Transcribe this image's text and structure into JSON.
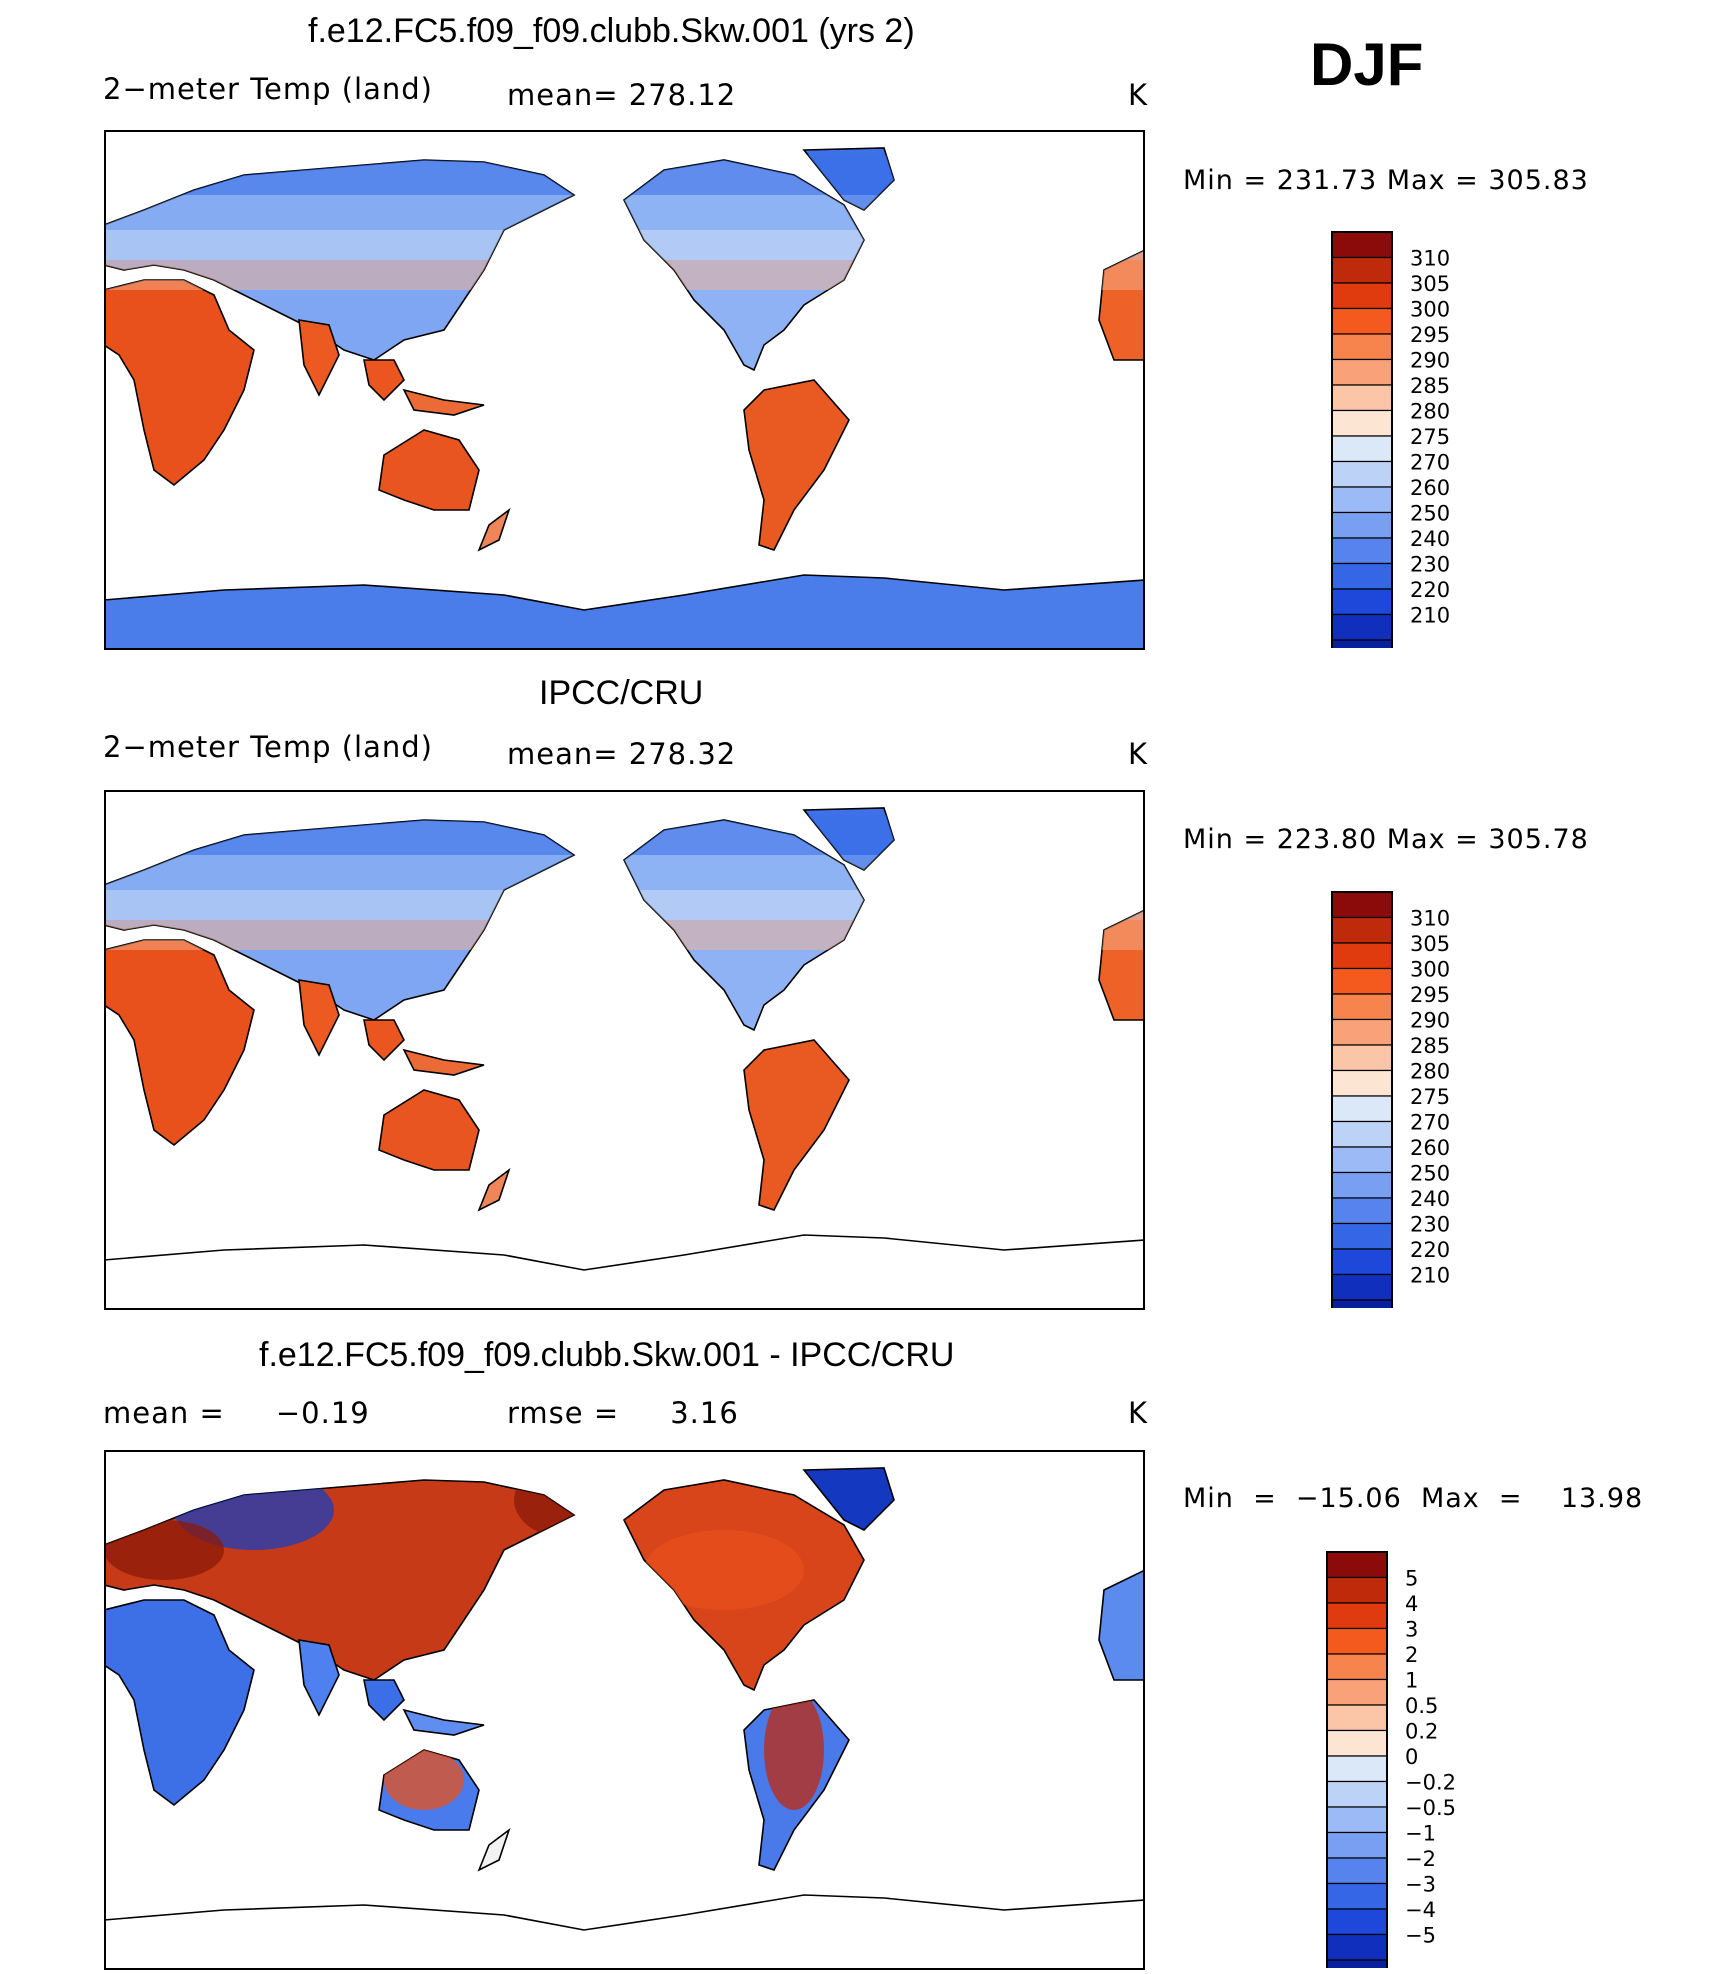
{
  "season": "DJF",
  "panels": [
    {
      "title": "f.e12.FC5.f09_f09.clubb.Skw.001 (yrs 2)",
      "variable": "2−meter Temp (land)",
      "stat": "mean=  278.12",
      "units": "K",
      "minmax": "Min  =  231.73  Max  =  305.83",
      "colorbar": {
        "colors": [
          "#8b0a0a",
          "#bf2a0a",
          "#e03a0f",
          "#f45a1e",
          "#f7834d",
          "#f9a27a",
          "#fbc5a7",
          "#fde5d3",
          "#dbe8f8",
          "#bcd2f6",
          "#9cbaf5",
          "#789ff2",
          "#5683ee",
          "#3566e6",
          "#1e48d9",
          "#112fbd",
          "#081f9e",
          "#00127e"
        ],
        "labels": [
          "310",
          "305",
          "300",
          "295",
          "290",
          "285",
          "280",
          "275",
          "270",
          "260",
          "250",
          "240",
          "230",
          "220",
          "210"
        ]
      },
      "map": {
        "kind": "absolute",
        "panel": "model"
      }
    },
    {
      "title": "IPCC/CRU",
      "variable": "2−meter Temp (land)",
      "stat": "mean=  278.32",
      "units": "K",
      "minmax": "Min  =  223.80  Max  =  305.78",
      "colorbar": {
        "colors": [
          "#8b0a0a",
          "#bf2a0a",
          "#e03a0f",
          "#f45a1e",
          "#f7834d",
          "#f9a27a",
          "#fbc5a7",
          "#fde5d3",
          "#dbe8f8",
          "#bcd2f6",
          "#9cbaf5",
          "#789ff2",
          "#5683ee",
          "#3566e6",
          "#1e48d9",
          "#112fbd",
          "#081f9e",
          "#00127e"
        ],
        "labels": [
          "310",
          "305",
          "300",
          "295",
          "290",
          "285",
          "280",
          "275",
          "270",
          "260",
          "250",
          "240",
          "230",
          "220",
          "210"
        ]
      },
      "map": {
        "kind": "absolute",
        "panel": "obs"
      }
    },
    {
      "title": "f.e12.FC5.f09_f09.clubb.Skw.001 - IPCC/CRU",
      "variable": "mean =     −0.19",
      "stat": "rmse =     3.16",
      "units": "K",
      "minmax": "Min  =  −15.06  Max  =    13.98",
      "colorbar": {
        "colors": [
          "#8b0a0a",
          "#bf2a0a",
          "#e03a0f",
          "#f45a1e",
          "#f7834d",
          "#f9a27a",
          "#fbc5a7",
          "#fde5d3",
          "#dbe8f8",
          "#bcd2f6",
          "#9cbaf5",
          "#789ff2",
          "#5683ee",
          "#3566e6",
          "#1e48d9",
          "#112fbd",
          "#081f9e",
          "#00127e"
        ],
        "labels": [
          "5",
          "4",
          "3",
          "2",
          "1",
          "0.5",
          "0.2",
          "0",
          "−0.2",
          "−0.5",
          "−1",
          "−2",
          "−3",
          "−4",
          "−5"
        ]
      },
      "map": {
        "kind": "difference",
        "panel": "diff"
      }
    }
  ]
}
